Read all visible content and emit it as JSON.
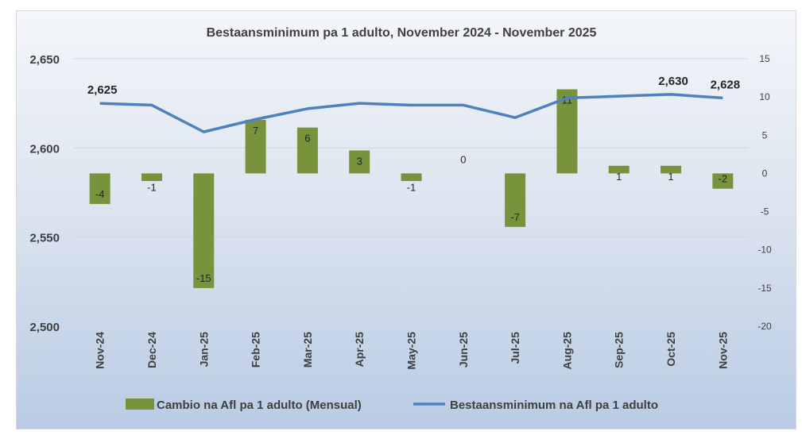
{
  "chart_data": {
    "type": "bar+line",
    "title": "Bestaansminimum pa 1 adulto, November 2024 - November 2025",
    "categories": [
      "Nov-24",
      "Dec-24",
      "Jan-25",
      "Feb-25",
      "Mar-25",
      "Apr-25",
      "May-25",
      "Jun-25",
      "Jul-25",
      "Aug-25",
      "Sep-25",
      "Oct-25",
      "Nov-25"
    ],
    "series": [
      {
        "name": "Cambio na Afl pa 1 adulto (Mensual)",
        "type": "bar",
        "axis": "right",
        "color": "#77933c",
        "values": [
          -4,
          -1,
          -15,
          7,
          6,
          3,
          -1,
          0,
          -7,
          11,
          1,
          1,
          -2
        ]
      },
      {
        "name": "Bestaansminimum na Afl pa 1 adulto",
        "type": "line",
        "axis": "left",
        "color": "#4f81bd",
        "values": [
          2625,
          2624,
          2609,
          2616,
          2622,
          2625,
          2624,
          2624,
          2617,
          2628,
          2629,
          2630,
          2628
        ],
        "labels": {
          "0": "2,625",
          "11": "2,630",
          "12": "2,628"
        }
      }
    ],
    "left_axis": {
      "range": [
        2500,
        2650
      ],
      "ticks": [
        "2,500",
        "2,550",
        "2,600",
        "2,650"
      ]
    },
    "right_axis": {
      "range": [
        -20,
        15
      ],
      "ticks": [
        "-20",
        "-15",
        "-10",
        "-5",
        "0",
        "5",
        "10",
        "15"
      ]
    },
    "grid": true,
    "legend": "bottom"
  }
}
